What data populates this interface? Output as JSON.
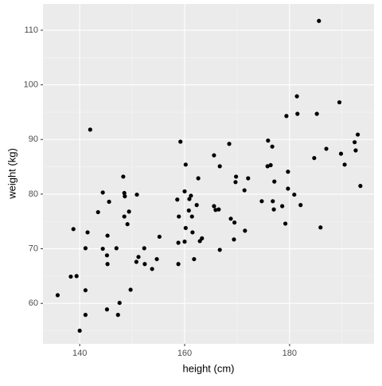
{
  "chart_data": {
    "type": "scatter",
    "x_label": "height (cm)",
    "y_label": "weight (kg)",
    "color": "#000000",
    "x": [
      135.8,
      138.3,
      139.4,
      138.8,
      140.0,
      141.1,
      141.1,
      141.1,
      141.5,
      142.0,
      143.5,
      144.4,
      144.4,
      145.2,
      145.2,
      145.3,
      145.3,
      145.6,
      147.0,
      147.3,
      147.6,
      148.3,
      148.5,
      148.6,
      148.5,
      149.1,
      149.4,
      149.7,
      150.8,
      150.9,
      151.2,
      152.3,
      152.4,
      153.8,
      154.7,
      155.2,
      158.8,
      158.9,
      158.8,
      159.2,
      158.6,
      160.0,
      160.2,
      160.2,
      160.0,
      160.8,
      160.9,
      161.2,
      161.4,
      161.5,
      161.8,
      162.3,
      162.6,
      162.9,
      163.3,
      165.6,
      165.6,
      165.9,
      166.5,
      166.7,
      166.7,
      168.5,
      168.8,
      169.4,
      169.5,
      169.7,
      169.8,
      171.4,
      171.5,
      172.1,
      174.7,
      175.8,
      175.9,
      176.4,
      176.7,
      177.0,
      176.8,
      177.1,
      178.6,
      179.2,
      179.4,
      179.7,
      179.7,
      180.9,
      181.4,
      181.5,
      182.1,
      184.7,
      185.2,
      185.6,
      185.9,
      187.0,
      189.5,
      189.8,
      190.5,
      192.4,
      192.6,
      193.0,
      193.5
    ],
    "values": [
      61.5,
      64.9,
      65.0,
      73.6,
      55.0,
      57.9,
      62.4,
      70.1,
      73.0,
      91.8,
      76.7,
      80.3,
      70.0,
      58.9,
      68.8,
      67.2,
      72.4,
      78.6,
      70.1,
      57.9,
      60.1,
      83.2,
      80.2,
      79.6,
      75.9,
      74.5,
      76.8,
      62.5,
      67.6,
      79.9,
      68.5,
      70.1,
      67.2,
      66.3,
      68.1,
      72.2,
      71.1,
      75.9,
      67.2,
      89.6,
      79.0,
      80.5,
      85.4,
      73.8,
      71.3,
      77.0,
      79.1,
      79.7,
      75.9,
      73.0,
      68.1,
      78.0,
      82.9,
      71.4,
      71.9,
      87.1,
      77.8,
      77.1,
      77.2,
      69.8,
      85.1,
      89.2,
      75.5,
      71.7,
      74.8,
      82.2,
      83.2,
      80.7,
      73.3,
      82.9,
      78.7,
      85.1,
      89.8,
      85.3,
      88.7,
      77.2,
      78.7,
      82.3,
      77.8,
      74.6,
      94.3,
      81.0,
      84.1,
      79.9,
      97.9,
      94.7,
      78.0,
      86.6,
      94.7,
      111.7,
      73.9,
      88.3,
      96.8,
      87.4,
      85.4,
      89.5,
      88.0,
      90.9,
      81.5
    ],
    "xlim": [
      133.0,
      196.1
    ],
    "ylim": [
      52.6,
      114.8
    ],
    "xticks": [
      140,
      160,
      180
    ],
    "yticks": [
      60,
      70,
      80,
      90,
      100,
      110
    ],
    "grid": true
  }
}
